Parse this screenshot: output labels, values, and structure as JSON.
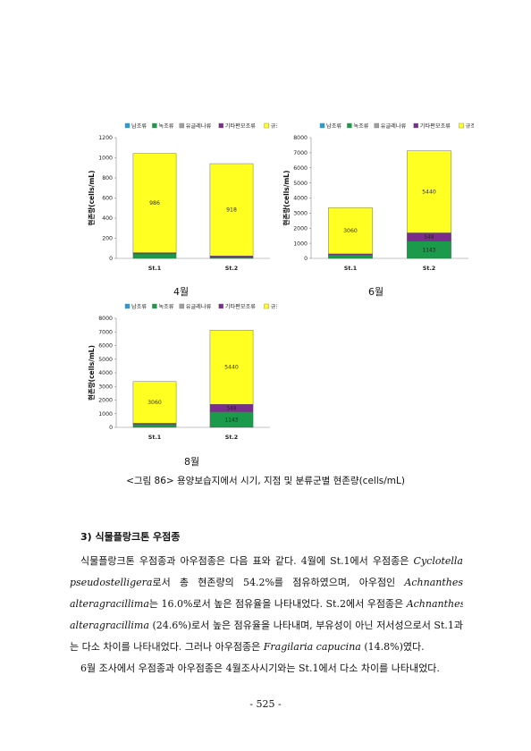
{
  "legend_items": [
    {
      "label": "남조류",
      "color": "#2e9bd6"
    },
    {
      "label": "녹조류",
      "color": "#1a9a4a"
    },
    {
      "label": "유글레나류",
      "color": "#a0a0a0"
    },
    {
      "label": "기타편모조류",
      "color": "#7b2d8e"
    },
    {
      "label": "규조류",
      "color": "#ffff22"
    }
  ],
  "ylabel": "현존량(cells/mL)",
  "chart_data": [
    {
      "type": "bar",
      "stacked": true,
      "month_label": "4월",
      "categories": [
        "St.1",
        "St.2"
      ],
      "ylim": [
        0,
        1200
      ],
      "yticks": [
        "0",
        "200",
        "400",
        "600",
        "800",
        "1000",
        "1200"
      ],
      "ytick_values": [
        0,
        200,
        400,
        600,
        800,
        1000,
        1200
      ],
      "series": [
        {
          "name": "남조류",
          "values": [
            0,
            0
          ]
        },
        {
          "name": "녹조류",
          "values": [
            45,
            8
          ]
        },
        {
          "name": "유글레나류",
          "values": [
            0,
            0
          ]
        },
        {
          "name": "기타편모조류",
          "values": [
            12,
            16
          ]
        },
        {
          "name": "규조류",
          "values": [
            986,
            918
          ]
        }
      ],
      "data_labels": [
        [
          "986"
        ],
        [
          "918"
        ]
      ]
    },
    {
      "type": "bar",
      "stacked": true,
      "month_label": "6월",
      "categories": [
        "St.1",
        "St.2"
      ],
      "ylim": [
        0,
        8000
      ],
      "yticks": [
        "0",
        "1000",
        "2000",
        "3000",
        "4000",
        "5000",
        "6000",
        "7000",
        "8000"
      ],
      "ytick_values": [
        0,
        1000,
        2000,
        3000,
        4000,
        5000,
        6000,
        7000,
        8000
      ],
      "series": [
        {
          "name": "남조류",
          "values": [
            0,
            0
          ]
        },
        {
          "name": "녹조류",
          "values": [
            230,
            1143
          ]
        },
        {
          "name": "유글레나류",
          "values": [
            0,
            0
          ]
        },
        {
          "name": "기타편모조류",
          "values": [
            70,
            548
          ]
        },
        {
          "name": "규조류",
          "values": [
            3060,
            5440
          ]
        }
      ],
      "data_labels": [
        [
          "3060"
        ],
        [
          "5440",
          "548",
          "1143"
        ]
      ]
    },
    {
      "type": "bar",
      "stacked": true,
      "month_label": "8월",
      "categories": [
        "St.1",
        "St.2"
      ],
      "ylim": [
        0,
        8000
      ],
      "yticks": [
        "0",
        "1000",
        "2000",
        "3000",
        "4000",
        "5000",
        "6000",
        "7000",
        "8000"
      ],
      "ytick_values": [
        0,
        1000,
        2000,
        3000,
        4000,
        5000,
        6000,
        7000,
        8000
      ],
      "series": [
        {
          "name": "남조류",
          "values": [
            0,
            0
          ]
        },
        {
          "name": "녹조류",
          "values": [
            230,
            1143
          ]
        },
        {
          "name": "유글레나류",
          "values": [
            0,
            0
          ]
        },
        {
          "name": "기타편모조류",
          "values": [
            70,
            548
          ]
        },
        {
          "name": "규조류",
          "values": [
            3060,
            5440
          ]
        }
      ],
      "data_labels": [
        [
          "3060"
        ],
        [
          "5440",
          "548",
          "1143"
        ]
      ]
    }
  ],
  "caption": "<그림 86> 용양보습지에서 시기, 지점 및 분류군별 현존량(cells/mL)",
  "section_heading": "3) 식물플랑크톤 우점종",
  "paragraph_lines": [
    [
      {
        "t": "식물플랑크톤 우점종과 아우점종은 다음 표와 같다. 4월에 St.1에서 우점종은 "
      },
      {
        "t": "Cyclotella",
        "i": true
      }
    ],
    [
      {
        "t": "pseudostelligera",
        "i": true
      },
      {
        "t": "로서  총  현존량의  54.2%를  점유하였으며,  아우점인  "
      },
      {
        "t": "Achnanthes",
        "i": true
      }
    ],
    [
      {
        "t": "alteragracillima",
        "i": true
      },
      {
        "t": "는 16.0%로서 높은 점유율을 나타내었다. St.2에서 우점종은 "
      },
      {
        "t": "Achnanthes",
        "i": true
      }
    ],
    [
      {
        "t": "alteragracillima",
        "i": true
      },
      {
        "t": " (24.6%)로서 높은 점유율을 나타내며, 부유성이 아닌 저서성으로서 St.1과"
      }
    ],
    [
      {
        "t": "는 다소 차이를 나타내었다. 그러나 아우점종은 "
      },
      {
        "t": "Fragilaria capucina",
        "i": true
      },
      {
        "t": " (14.8%)였다."
      }
    ],
    [
      {
        "t": "6월 조사에서 우점종과 아우점종은 4월조사시기와는 St.1에서 다소 차이를 나타내었다."
      }
    ]
  ],
  "page_number": "- 525 -"
}
